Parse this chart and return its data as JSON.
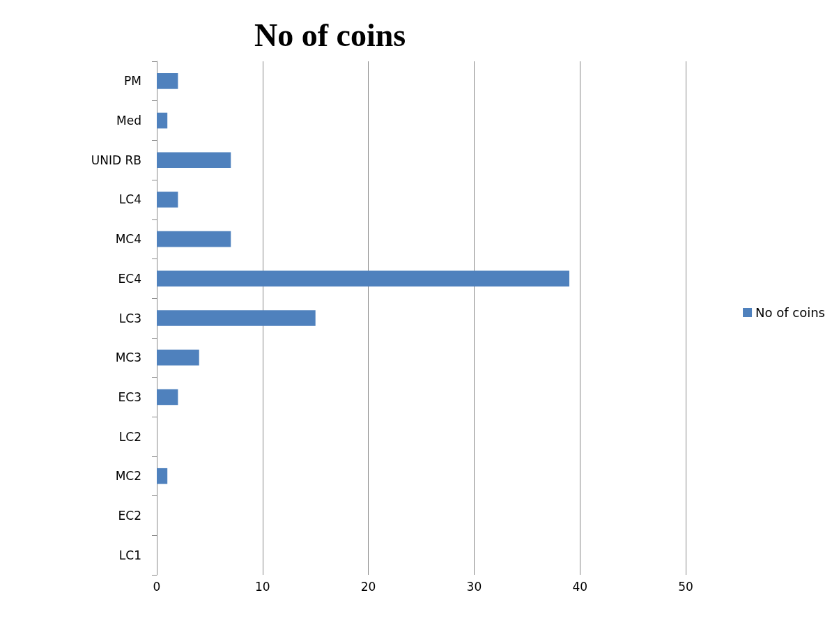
{
  "chart_data": {
    "type": "bar",
    "orientation": "horizontal",
    "title": "No of coins",
    "categories": [
      "PM",
      "Med",
      "UNID RB",
      "LC4",
      "MC4",
      "EC4",
      "LC3",
      "MC3",
      "EC3",
      "LC2",
      "MC2",
      "EC2",
      "LC1"
    ],
    "series": [
      {
        "name": "No of coins",
        "color": "#4f81bd",
        "values": [
          2,
          1,
          7,
          2,
          7,
          39,
          15,
          4,
          2,
          0,
          1,
          0,
          0
        ]
      }
    ],
    "xlim": [
      0,
      50
    ],
    "xticks": [
      0,
      10,
      20,
      30,
      40,
      50
    ],
    "grid": "x",
    "legend": "right"
  }
}
